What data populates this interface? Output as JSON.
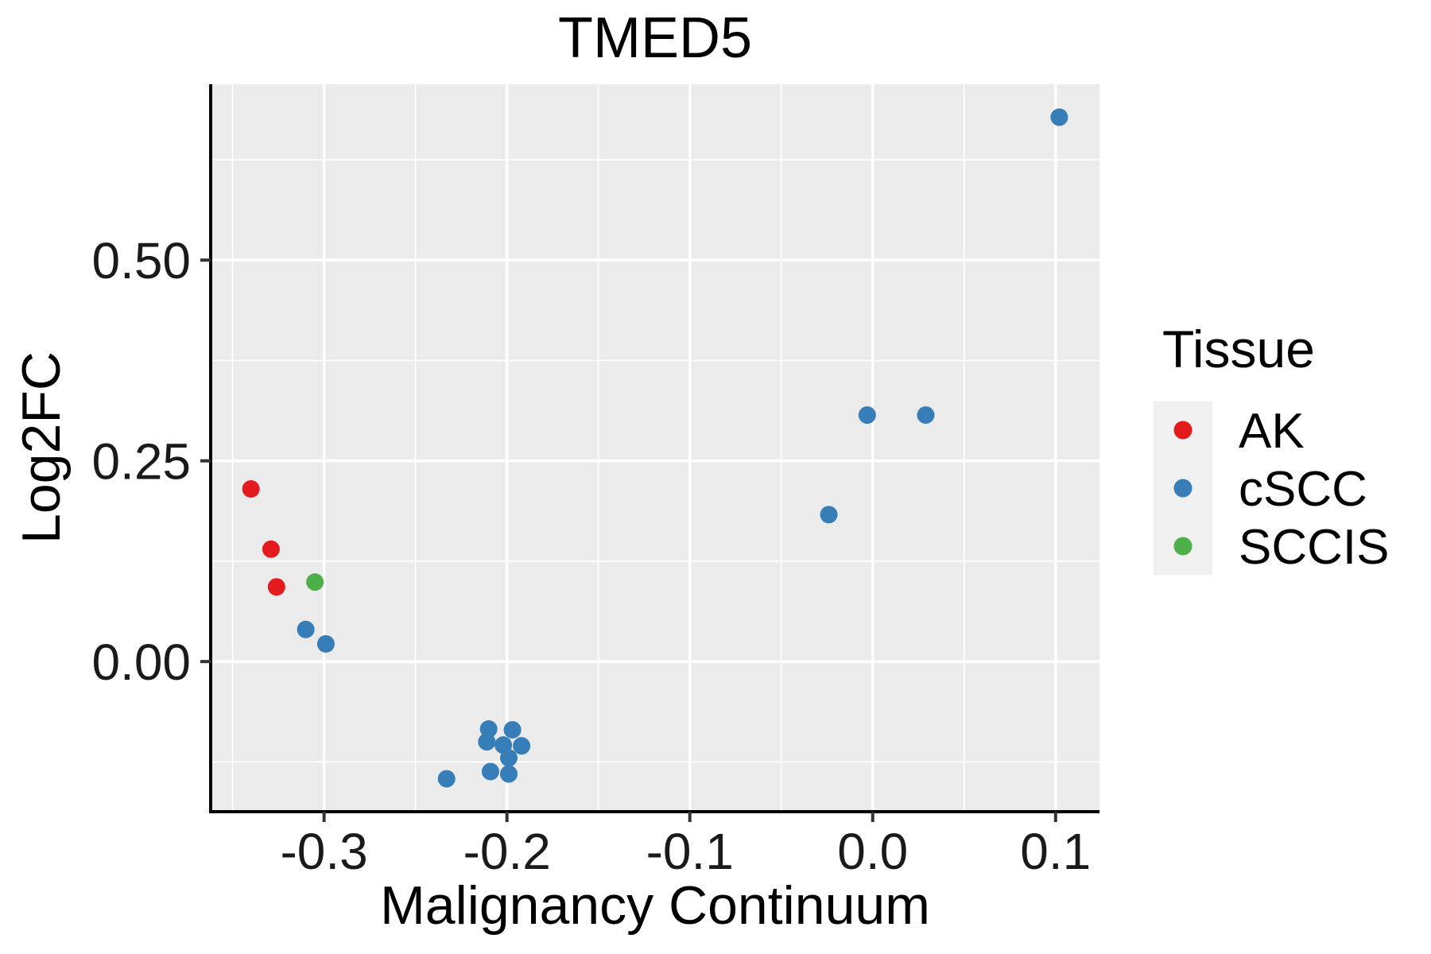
{
  "figure": {
    "title": "TMED5"
  },
  "chart_data": {
    "type": "scatter",
    "title": "TMED5",
    "xlabel": "Malignancy Continuum",
    "ylabel": "Log2FC",
    "xlim": [
      -0.362,
      0.124
    ],
    "ylim": [
      -0.187,
      0.719
    ],
    "x_major_ticks": [
      -0.3,
      -0.2,
      -0.1,
      0.0,
      0.1
    ],
    "x_tick_labels": [
      "-0.3",
      "-0.2",
      "-0.1",
      "0.0",
      "0.1"
    ],
    "x_minor_ticks": [
      -0.35,
      -0.25,
      -0.15,
      -0.05,
      0.05
    ],
    "y_major_ticks": [
      0.0,
      0.25,
      0.5
    ],
    "y_tick_labels": [
      "0.00",
      "0.25",
      "0.50"
    ],
    "y_minor_ticks": [
      -0.125,
      0.125,
      0.375,
      0.625
    ],
    "grid": true,
    "panel_bg": "#EBEBEB",
    "grid_color": "#FFFFFF",
    "legend_position": "right",
    "legend_key_bg": "#F0F0F0",
    "point_radius": 11,
    "series": [
      {
        "name": "AK",
        "color": "#E41A1C",
        "points": [
          [
            -0.34,
            0.215
          ],
          [
            -0.329,
            0.14
          ],
          [
            -0.326,
            0.093
          ]
        ]
      },
      {
        "name": "cSCC",
        "color": "#377EB8",
        "points": [
          [
            -0.31,
            0.04
          ],
          [
            -0.299,
            0.022
          ],
          [
            -0.233,
            -0.146
          ],
          [
            -0.21,
            -0.084
          ],
          [
            -0.197,
            -0.085
          ],
          [
            -0.211,
            -0.1
          ],
          [
            -0.202,
            -0.104
          ],
          [
            -0.192,
            -0.105
          ],
          [
            -0.199,
            -0.12
          ],
          [
            -0.209,
            -0.137
          ],
          [
            -0.199,
            -0.14
          ],
          [
            -0.024,
            0.183
          ],
          [
            -0.003,
            0.307
          ],
          [
            0.029,
            0.307
          ],
          [
            0.102,
            0.678
          ]
        ]
      },
      {
        "name": "SCCIS",
        "color": "#4DAF4A",
        "points": [
          [
            -0.305,
            0.099
          ]
        ]
      }
    ]
  },
  "legend": {
    "title": "Tissue",
    "items": [
      {
        "label": "AK",
        "color": "#E41A1C"
      },
      {
        "label": "cSCC",
        "color": "#377EB8"
      },
      {
        "label": "SCCIS",
        "color": "#4DAF4A"
      }
    ]
  }
}
